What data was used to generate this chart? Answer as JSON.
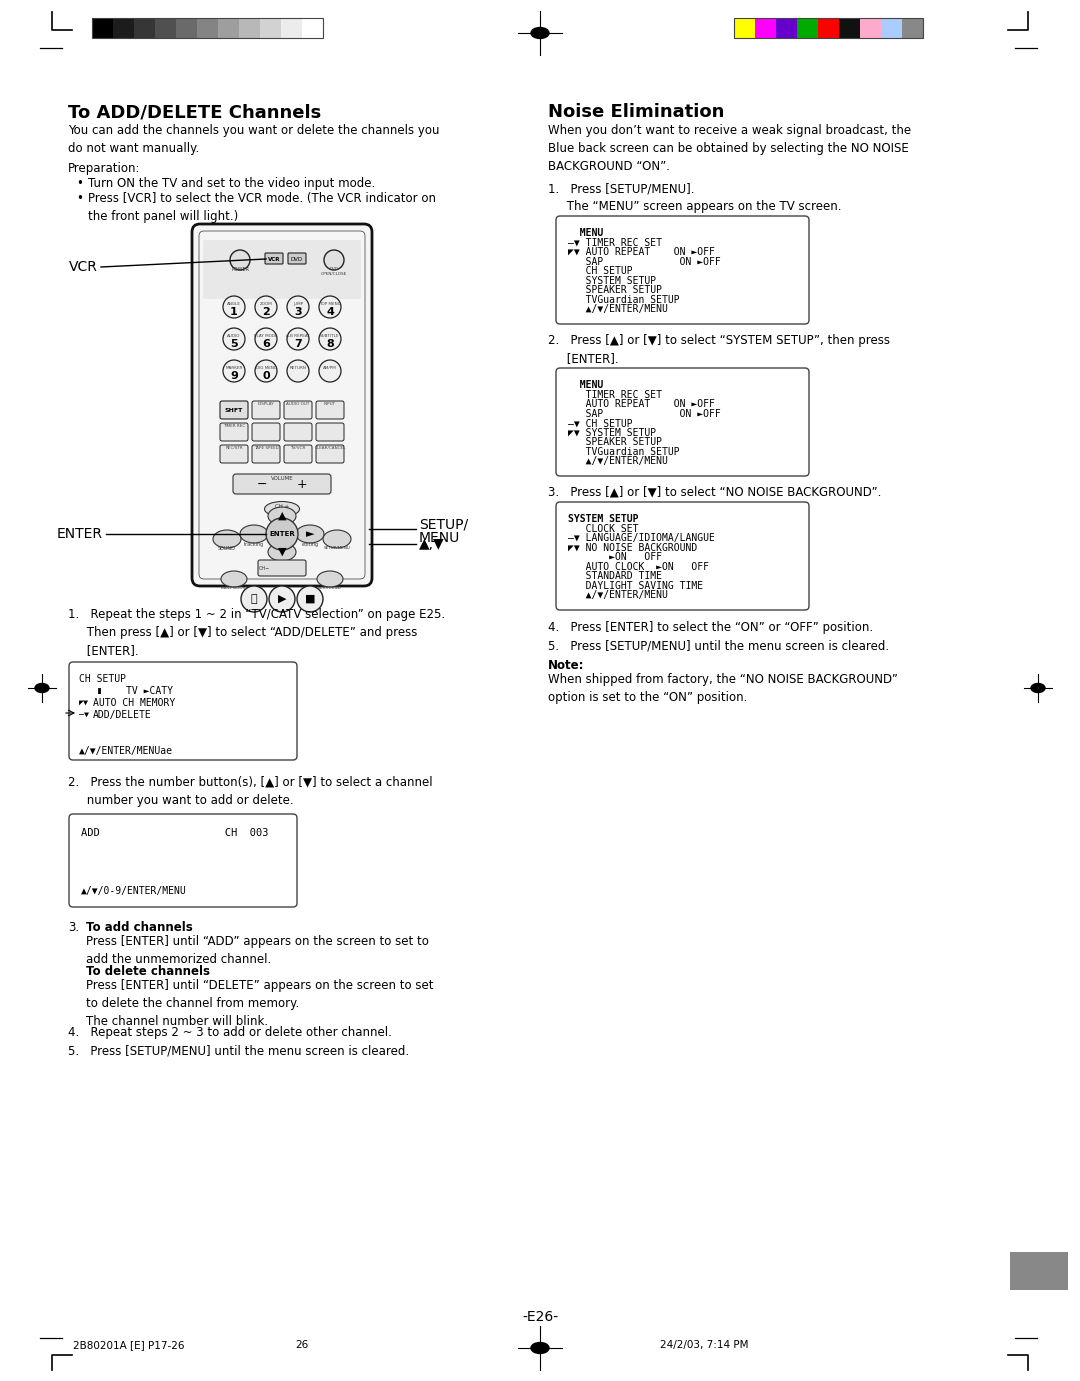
{
  "page_width": 10.8,
  "page_height": 13.81,
  "bg_color": "#ffffff",
  "top_grayscale_colors": [
    "#000000",
    "#1c1c1c",
    "#363636",
    "#505050",
    "#6a6a6a",
    "#848484",
    "#9e9e9e",
    "#b8b8b8",
    "#d2d2d2",
    "#ececec",
    "#ffffff"
  ],
  "top_color_bars": [
    "#ffff00",
    "#ff00ff",
    "#6600cc",
    "#00aa00",
    "#ff0000",
    "#111111",
    "#ffaacc",
    "#aaccff",
    "#888888"
  ],
  "left_title": "To ADD/DELETE Channels",
  "right_title": "Noise Elimination",
  "page_number": "-E26-",
  "footer_left": "2B80201A [E] P17-26",
  "footer_center": "26",
  "footer_right": "24/2/03, 7:14 PM",
  "menu_box1_lines": [
    "  MENU",
    "—▼ TIMER REC SET",
    "◤▼ AUTO REPEAT    ON ►OFF",
    "   SAP             ON ►OFF",
    "   CH SETUP",
    "   SYSTEM SETUP",
    "   SPEAKER SETUP",
    "   TVGuardian SETUP",
    "   ▲/▼/ENTER/MENU"
  ],
  "menu_box2_lines": [
    "  MENU",
    "   TIMER REC SET",
    "   AUTO REPEAT    ON ►OFF",
    "   SAP             ON ►OFF",
    "—▼ CH SETUP",
    "◤▼ SYSTEM SETUP",
    "   SPEAKER SETUP",
    "   TVGuardian SETUP",
    "   ▲/▼/ENTER/MENU"
  ],
  "menu_box3_lines": [
    "SYSTEM SETUP",
    "   CLOCK SET",
    "—▼ LANGUAGE/IDIOMA/LANGUE",
    "◤▼ NO NOISE BACKGROUND",
    "       ►ON   OFF",
    "   AUTO CLOCK  ►ON   OFF",
    "   STANDARD TIME",
    "   DAYLIGHT SAVING TIME",
    "   ▲/▼/ENTER/MENU"
  ],
  "ch_setup_box_lines": [
    "CH SETUP",
    "   ▮    TV ►CATY",
    "◤▼ AUTO CH MEMORY",
    "—▼ ADD/DELETE",
    "",
    "",
    "   ▲/▼/ENTER/MENUae"
  ],
  "add_box_lines": [
    "ADD                    CH  003",
    "",
    "",
    "",
    "▲/▼/0-9/ENTER/MENU"
  ]
}
